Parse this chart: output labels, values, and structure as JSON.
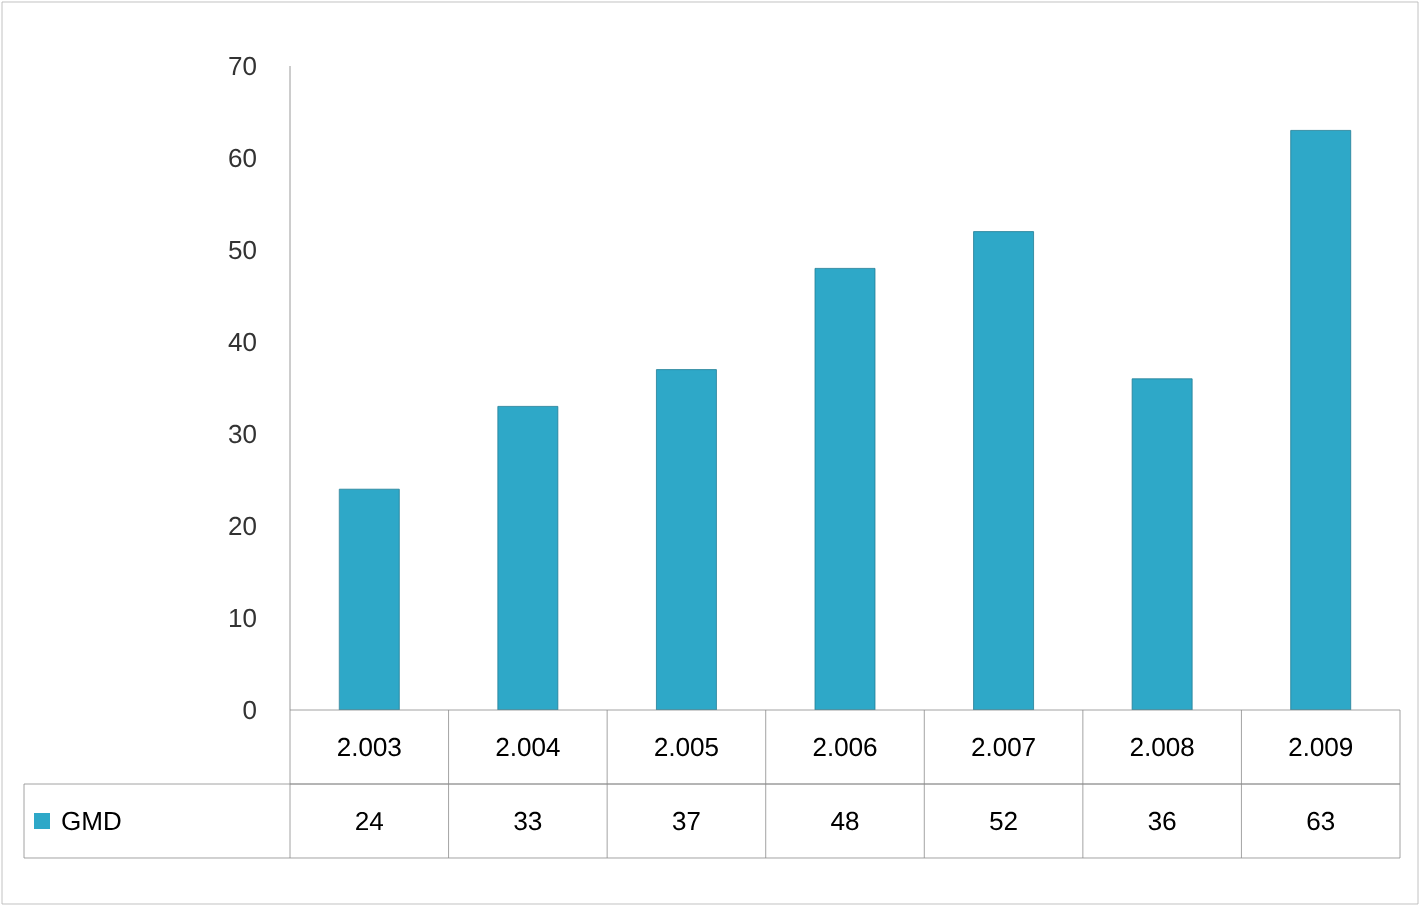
{
  "chart_data": {
    "type": "bar",
    "categories": [
      "2.003",
      "2.004",
      "2.005",
      "2.006",
      "2.007",
      "2.008",
      "2.009"
    ],
    "series": [
      {
        "name": "GMD",
        "color": "#2ea8c8",
        "values": [
          24,
          33,
          37,
          48,
          52,
          36,
          63
        ]
      }
    ],
    "ylim": [
      0,
      70
    ],
    "yticks": [
      0,
      10,
      20,
      30,
      40,
      50,
      60,
      70
    ],
    "data_labels": true,
    "grid": false
  }
}
